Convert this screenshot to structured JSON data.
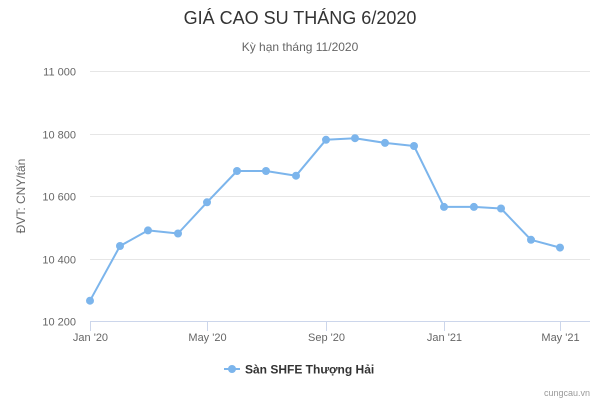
{
  "chart_data": {
    "type": "line",
    "title": "GIÁ CAO SU THÁNG 6/2020",
    "subtitle": "Kỳ hạn tháng 11/2020",
    "xlabel": "",
    "ylabel": "ĐVT: CNY/tấn",
    "ylim": [
      10200,
      11000
    ],
    "yticks": [
      10200,
      10400,
      10600,
      10800,
      11000
    ],
    "ytick_labels": [
      "10 200",
      "10 400",
      "10 600",
      "10 800",
      "11 000"
    ],
    "xlim": [
      "2020-01-01",
      "2021-06-01"
    ],
    "xticks": [
      "2020-01-01",
      "2020-05-01",
      "2020-09-01",
      "2021-01-01",
      "2021-05-01"
    ],
    "xtick_labels": [
      "Jan '20",
      "May '20",
      "Sep '20",
      "Jan '21",
      "May '21"
    ],
    "grid": true,
    "legend_position": "bottom",
    "series": [
      {
        "name": "Sàn SHFE Thượng Hải",
        "color": "#7cb5ec",
        "x": [
          "2020-01-01",
          "2020-02-01",
          "2020-03-01",
          "2020-04-01",
          "2020-05-01",
          "2020-06-01",
          "2020-07-01",
          "2020-08-01",
          "2020-09-01",
          "2020-10-01",
          "2020-11-01",
          "2020-12-01",
          "2021-01-01",
          "2021-02-01",
          "2021-03-01",
          "2021-04-01",
          "2021-05-01"
        ],
        "values": [
          10265,
          10440,
          10490,
          10480,
          10580,
          10680,
          10680,
          10665,
          10780,
          10785,
          10770,
          10760,
          10565,
          10565,
          10560,
          10460,
          10435
        ]
      }
    ]
  },
  "credit": "cungcau.vn"
}
